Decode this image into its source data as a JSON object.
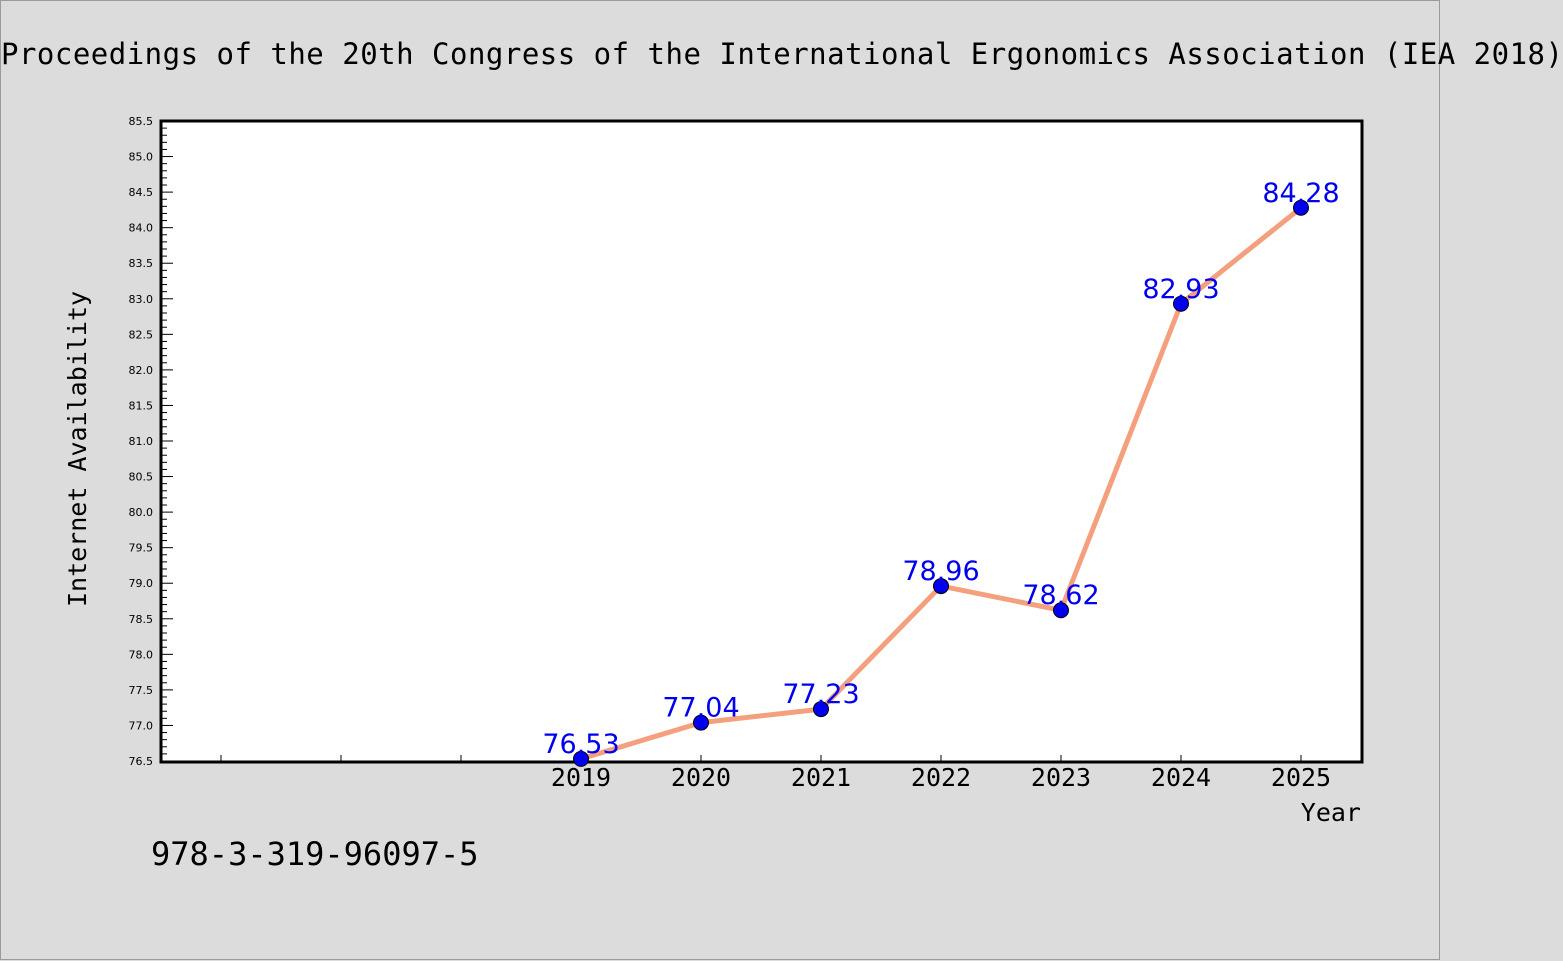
{
  "header": {
    "title": "Proceedings of the 20th Congress of the International Ergonomics Association (IEA 2018)"
  },
  "footer": {
    "isbn": "978-3-319-96097-5"
  },
  "chart_data": {
    "type": "line",
    "xlabel": "Year",
    "ylabel": "Internet Availability",
    "x": [
      "2019",
      "2020",
      "2021",
      "2022",
      "2023",
      "2024",
      "2025"
    ],
    "series": [
      {
        "values": [
          76.53,
          77.04,
          77.23,
          78.96,
          78.62,
          82.93,
          84.28
        ],
        "line_color": "#f4a07f",
        "marker_color": "#0000ee",
        "label_color": "#0000ee"
      }
    ],
    "ylim": [
      76.5,
      85.5
    ],
    "yticks": [
      "76.5",
      "77.0",
      "77.5",
      "78.0",
      "78.5",
      "79.0",
      "79.5",
      "80.0",
      "80.5",
      "81.0",
      "81.5",
      "82.0",
      "82.5",
      "83.0",
      "83.5",
      "84.0",
      "84.5",
      "85.0",
      "85.5"
    ],
    "grid": false,
    "data_labels": true
  }
}
